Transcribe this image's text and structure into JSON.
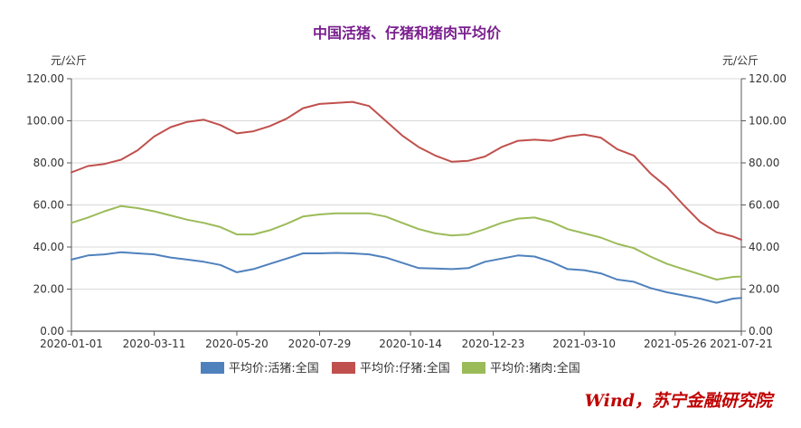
{
  "chart_data": {
    "type": "line",
    "title": "中国活猪、仔猪和猪肉平均价",
    "y_unit_left": "元/公斤",
    "y_unit_right": "元/公斤",
    "ylim": [
      0,
      120
    ],
    "yticks": [
      "0.00",
      "20.00",
      "40.00",
      "60.00",
      "80.00",
      "100.00",
      "120.00"
    ],
    "xlim": [
      "2020-01-01",
      "2021-07-21"
    ],
    "xticks": [
      "2020-01-01",
      "2020-03-11",
      "2020-05-20",
      "2020-07-29",
      "2020-10-14",
      "2020-12-23",
      "2021-03-10",
      "2021-05-26",
      "2021-07-21"
    ],
    "grid": "horizontal",
    "legend_position": "bottom",
    "x": [
      "2020-01-01",
      "2020-01-15",
      "2020-01-29",
      "2020-02-12",
      "2020-02-26",
      "2020-03-11",
      "2020-03-25",
      "2020-04-08",
      "2020-04-22",
      "2020-05-06",
      "2020-05-20",
      "2020-06-03",
      "2020-06-17",
      "2020-07-01",
      "2020-07-15",
      "2020-07-29",
      "2020-08-12",
      "2020-08-26",
      "2020-09-09",
      "2020-09-23",
      "2020-10-07",
      "2020-10-21",
      "2020-11-04",
      "2020-11-18",
      "2020-12-02",
      "2020-12-16",
      "2020-12-30",
      "2021-01-13",
      "2021-01-27",
      "2021-02-10",
      "2021-02-24",
      "2021-03-10",
      "2021-03-24",
      "2021-04-07",
      "2021-04-21",
      "2021-05-05",
      "2021-05-19",
      "2021-06-02",
      "2021-06-16",
      "2021-06-30",
      "2021-07-14",
      "2021-07-21"
    ],
    "series": [
      {
        "name": "平均价:活猪:全国",
        "color": "#4f81bd",
        "values": [
          34.0,
          36.0,
          36.5,
          37.5,
          37.0,
          36.5,
          35.0,
          34.0,
          33.0,
          31.5,
          28.0,
          29.5,
          32.0,
          34.5,
          37.0,
          37.0,
          37.2,
          37.0,
          36.5,
          35.0,
          32.5,
          30.0,
          29.8,
          29.5,
          30.0,
          33.0,
          34.5,
          36.0,
          35.5,
          33.0,
          29.5,
          29.0,
          27.5,
          24.5,
          23.5,
          20.5,
          18.5,
          17.0,
          15.5,
          13.5,
          15.5,
          15.8
        ]
      },
      {
        "name": "平均价:仔猪:全国",
        "color": "#c0504d",
        "values": [
          75.5,
          78.5,
          79.5,
          81.5,
          86.0,
          92.5,
          97.0,
          99.5,
          100.5,
          98.0,
          94.0,
          95.0,
          97.5,
          101.0,
          106.0,
          108.0,
          108.5,
          109.0,
          107.0,
          100.0,
          93.0,
          87.5,
          83.5,
          80.5,
          81.0,
          83.0,
          87.5,
          90.5,
          91.0,
          90.5,
          92.5,
          93.5,
          92.0,
          86.5,
          83.5,
          75.0,
          68.5,
          60.0,
          52.0,
          47.0,
          45.0,
          43.5
        ]
      },
      {
        "name": "平均价:猪肉:全国",
        "color": "#9bbb59",
        "values": [
          51.5,
          54.0,
          57.0,
          59.5,
          58.5,
          57.0,
          55.0,
          53.0,
          51.5,
          49.5,
          46.0,
          46.0,
          48.0,
          51.0,
          54.5,
          55.5,
          56.0,
          56.0,
          56.0,
          54.5,
          51.5,
          48.5,
          46.5,
          45.5,
          46.0,
          48.5,
          51.5,
          53.5,
          54.0,
          52.0,
          48.5,
          46.5,
          44.5,
          41.5,
          39.5,
          35.5,
          32.0,
          29.5,
          27.0,
          24.5,
          25.8,
          26.0
        ]
      }
    ]
  },
  "source_note": "Wind，苏宁金融研究院"
}
